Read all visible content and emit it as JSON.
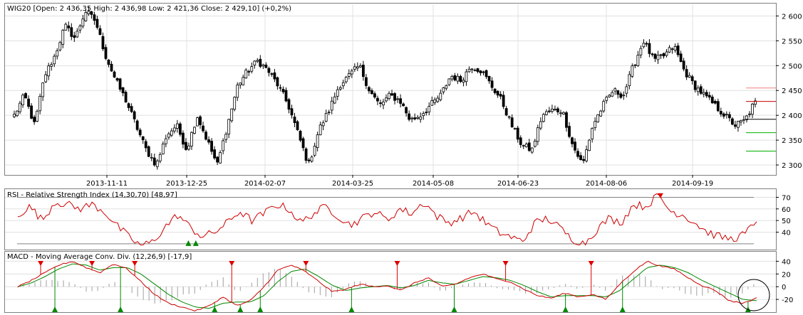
{
  "chart_data": [
    {
      "type": "candlestick",
      "title": "WIG20 [Open: 2 436,35  High: 2 436,98  Low: 2 421,36  Close: 2 429,10] (+0,2%)",
      "x_ticks": [
        "2013-11-11",
        "2013-12-25",
        "2014-02-07",
        "2014-03-25",
        "2014-05-08",
        "2014-06-23",
        "2014-08-06",
        "2014-09-19"
      ],
      "y_ticks": [
        "2 600",
        "2 550",
        "2 500",
        "2 450",
        "2 400",
        "2 350",
        "2 300"
      ],
      "ylim": [
        2280,
        2625
      ],
      "key_closes": [
        2400,
        2440,
        2380,
        2480,
        2520,
        2580,
        2555,
        2610,
        2590,
        2520,
        2470,
        2430,
        2380,
        2330,
        2300,
        2360,
        2380,
        2330,
        2400,
        2350,
        2300,
        2380,
        2460,
        2490,
        2510,
        2490,
        2460,
        2420,
        2360,
        2300,
        2370,
        2410,
        2460,
        2480,
        2500,
        2450,
        2420,
        2440,
        2430,
        2390,
        2400,
        2420,
        2440,
        2480,
        2470,
        2500,
        2490,
        2460,
        2430,
        2380,
        2340,
        2330,
        2400,
        2410,
        2410,
        2340,
        2300,
        2380,
        2420,
        2450,
        2440,
        2500,
        2550,
        2510,
        2520,
        2540,
        2490,
        2460,
        2440,
        2420,
        2400,
        2380,
        2390,
        2429
      ],
      "right_markers": [
        {
          "value": 2455,
          "color": "#f08080"
        },
        {
          "value": 2428,
          "color": "#cc0000"
        },
        {
          "value": 2392,
          "color": "#000000"
        },
        {
          "value": 2365,
          "color": "#00b000"
        },
        {
          "value": 2328,
          "color": "#00b000"
        }
      ],
      "colors": {
        "up": "#ffffff",
        "down": "#000000",
        "wick": "#000000"
      }
    },
    {
      "type": "line",
      "title": "RSI - Relative Strength Index (14,30,70) [48,97]",
      "y_ticks": [
        "70",
        "60",
        "50",
        "40"
      ],
      "ylim": [
        25,
        77
      ],
      "levels": [
        70,
        30
      ],
      "key_values": [
        55,
        62,
        50,
        66,
        64,
        60,
        64,
        58,
        46,
        36,
        28,
        32,
        45,
        55,
        44,
        36,
        40,
        48,
        58,
        50,
        56,
        64,
        60,
        48,
        56,
        62,
        54,
        46,
        52,
        58,
        50,
        60,
        56,
        66,
        54,
        48,
        52,
        58,
        48,
        40,
        36,
        32,
        48,
        52,
        44,
        34,
        30,
        42,
        52,
        48,
        64,
        62,
        72,
        58,
        55,
        48,
        40,
        36,
        34,
        38,
        49
      ],
      "series_color": "#cc0000",
      "signals": {
        "sell": [
          0.872
        ],
        "buy": [
          0.235,
          0.245
        ]
      }
    },
    {
      "type": "line",
      "title": "MACD - Moving Average Conv. Div. (12,26,9) [-17,9]",
      "y_ticks": [
        "40",
        "20",
        "0",
        "-20"
      ],
      "ylim": [
        -40,
        55
      ],
      "key_macd": [
        0,
        10,
        22,
        34,
        40,
        30,
        22,
        36,
        28,
        8,
        -12,
        -26,
        -32,
        -38,
        -30,
        -16,
        -30,
        -22,
        0,
        26,
        34,
        24,
        8,
        -8,
        -4,
        4,
        0,
        2,
        -6,
        6,
        14,
        0,
        4,
        14,
        20,
        12,
        8,
        -4,
        -14,
        -18,
        -10,
        -16,
        -12,
        -20,
        4,
        24,
        40,
        32,
        28,
        14,
        2,
        -6,
        -22,
        -26,
        -18
      ],
      "key_signal": [
        0,
        6,
        16,
        28,
        36,
        34,
        26,
        30,
        30,
        20,
        4,
        -12,
        -24,
        -32,
        -34,
        -26,
        -24,
        -24,
        -14,
        8,
        24,
        28,
        16,
        2,
        -6,
        -2,
        0,
        2,
        -2,
        2,
        10,
        6,
        4,
        10,
        16,
        14,
        10,
        2,
        -8,
        -16,
        -14,
        -14,
        -14,
        -16,
        -6,
        12,
        30,
        34,
        30,
        22,
        10,
        0,
        -10,
        -20,
        -22
      ],
      "macd_color": "#cc0000",
      "signal_color": "#008800",
      "histogram_color": "#a0a0a0",
      "signals": {
        "sell": [
          0.03,
          0.1,
          0.158,
          0.29,
          0.39,
          0.513,
          0.66,
          0.775
        ],
        "buy": [
          0.05,
          0.14,
          0.265,
          0.3,
          0.33,
          0.45,
          0.59,
          0.74,
          0.82,
          0.988
        ]
      }
    }
  ]
}
